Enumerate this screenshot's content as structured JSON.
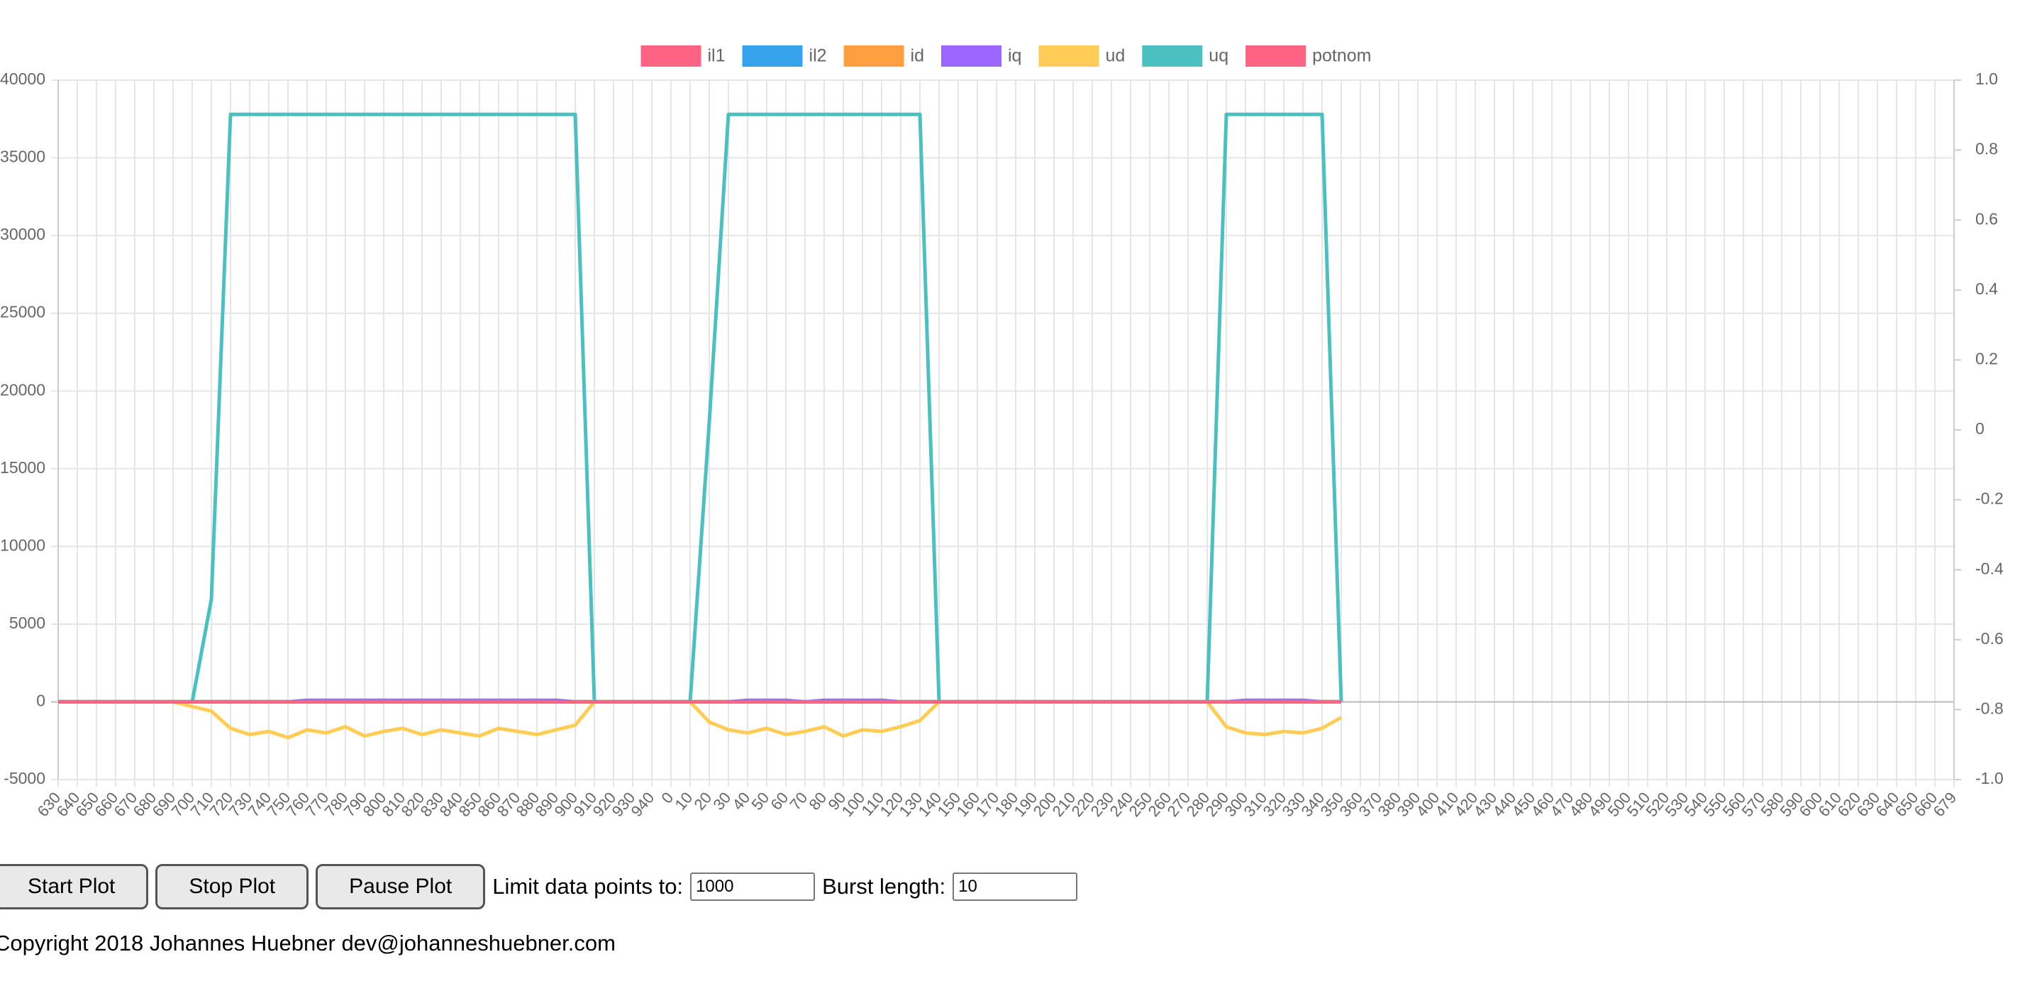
{
  "chart_data": {
    "type": "line",
    "categories": [
      "630",
      "640",
      "650",
      "660",
      "670",
      "680",
      "690",
      "700",
      "710",
      "720",
      "730",
      "740",
      "750",
      "760",
      "770",
      "780",
      "790",
      "800",
      "810",
      "820",
      "830",
      "840",
      "850",
      "860",
      "870",
      "880",
      "890",
      "900",
      "910",
      "920",
      "930",
      "940",
      "0",
      "10",
      "20",
      "30",
      "40",
      "50",
      "60",
      "70",
      "80",
      "90",
      "100",
      "110",
      "120",
      "130",
      "140",
      "150",
      "160",
      "170",
      "180",
      "190",
      "200",
      "210",
      "220",
      "230",
      "240",
      "250",
      "260",
      "270",
      "280",
      "290",
      "300",
      "310",
      "320",
      "330",
      "340",
      "350",
      "360",
      "370",
      "380",
      "390",
      "400",
      "410",
      "420",
      "430",
      "440",
      "450",
      "460",
      "470",
      "480",
      "490",
      "500",
      "510",
      "520",
      "530",
      "540",
      "550",
      "560",
      "570",
      "580",
      "590",
      "600",
      "610",
      "620",
      "630",
      "640",
      "650",
      "660",
      "679"
    ],
    "series": [
      {
        "name": "il1",
        "color": "#ff6384",
        "values": [
          0,
          0,
          0,
          0,
          0,
          0,
          0,
          0,
          0,
          0,
          0,
          0,
          0,
          0,
          0,
          0,
          0,
          0,
          0,
          0,
          0,
          0,
          0,
          0,
          0,
          0,
          0,
          0,
          0,
          0,
          0,
          0,
          0,
          0,
          0,
          0,
          0,
          0,
          0,
          0,
          0,
          0,
          0,
          0,
          0,
          0,
          0,
          0,
          0,
          0,
          0,
          0,
          0,
          0,
          0,
          0,
          0,
          0,
          0,
          0,
          0,
          0,
          0,
          0,
          0,
          0,
          0,
          0,
          null,
          null,
          null,
          null,
          null,
          null,
          null,
          null,
          null,
          null,
          null,
          null,
          null,
          null,
          null,
          null,
          null,
          null,
          null,
          null,
          null,
          null,
          null,
          null,
          null,
          null,
          null,
          null,
          null,
          null,
          null,
          null
        ]
      },
      {
        "name": "il2",
        "color": "#36a2eb",
        "values": [
          0,
          0,
          0,
          0,
          0,
          0,
          0,
          0,
          0,
          0,
          0,
          0,
          0,
          0,
          0,
          0,
          0,
          0,
          0,
          0,
          0,
          0,
          0,
          0,
          0,
          0,
          0,
          0,
          0,
          0,
          0,
          0,
          0,
          0,
          0,
          0,
          0,
          0,
          0,
          0,
          0,
          0,
          0,
          0,
          0,
          0,
          0,
          0,
          0,
          0,
          0,
          0,
          0,
          0,
          0,
          0,
          0,
          0,
          0,
          0,
          0,
          0,
          0,
          0,
          0,
          0,
          0,
          0,
          null,
          null,
          null,
          null,
          null,
          null,
          null,
          null,
          null,
          null,
          null,
          null,
          null,
          null,
          null,
          null,
          null,
          null,
          null,
          null,
          null,
          null,
          null,
          null,
          null,
          null,
          null,
          null,
          null,
          null,
          null,
          null
        ]
      },
      {
        "name": "id",
        "color": "#ff9f40",
        "values": [
          0,
          0,
          0,
          0,
          0,
          0,
          0,
          0,
          0,
          0,
          0,
          0,
          0,
          0,
          0,
          0,
          0,
          0,
          0,
          0,
          0,
          0,
          0,
          0,
          0,
          0,
          0,
          0,
          0,
          0,
          0,
          0,
          0,
          0,
          0,
          0,
          0,
          0,
          0,
          0,
          0,
          0,
          0,
          0,
          0,
          0,
          0,
          0,
          0,
          0,
          0,
          0,
          0,
          0,
          0,
          0,
          0,
          0,
          0,
          0,
          0,
          0,
          0,
          0,
          0,
          0,
          0,
          0,
          null,
          null,
          null,
          null,
          null,
          null,
          null,
          null,
          null,
          null,
          null,
          null,
          null,
          null,
          null,
          null,
          null,
          null,
          null,
          null,
          null,
          null,
          null,
          null,
          null,
          null,
          null,
          null,
          null,
          null,
          null,
          null
        ]
      },
      {
        "name": "iq",
        "color": "#9966ff",
        "values": [
          0,
          0,
          0,
          0,
          0,
          0,
          0,
          0,
          0,
          0,
          0,
          0,
          0,
          100,
          100,
          100,
          100,
          100,
          100,
          100,
          100,
          100,
          100,
          100,
          100,
          100,
          100,
          0,
          0,
          0,
          0,
          0,
          0,
          0,
          0,
          0,
          100,
          100,
          100,
          0,
          100,
          100,
          100,
          100,
          0,
          0,
          0,
          0,
          0,
          0,
          0,
          0,
          0,
          0,
          0,
          0,
          0,
          0,
          0,
          0,
          0,
          0,
          100,
          100,
          100,
          100,
          0,
          0,
          null,
          null,
          null,
          null,
          null,
          null,
          null,
          null,
          null,
          null,
          null,
          null,
          null,
          null,
          null,
          null,
          null,
          null,
          null,
          null,
          null,
          null,
          null,
          null,
          null,
          null,
          null,
          null,
          null,
          null,
          null,
          null
        ]
      },
      {
        "name": "ud",
        "color": "#ffcd56",
        "values": [
          0,
          0,
          0,
          0,
          0,
          0,
          0,
          -300,
          -600,
          -1700,
          -2100,
          -1900,
          -2300,
          -1800,
          -2000,
          -1600,
          -2200,
          -1900,
          -1700,
          -2100,
          -1800,
          -2000,
          -2200,
          -1700,
          -1900,
          -2100,
          -1800,
          -1500,
          0,
          0,
          0,
          0,
          0,
          0,
          -1300,
          -1800,
          -2000,
          -1700,
          -2100,
          -1900,
          -1600,
          -2200,
          -1800,
          -1900,
          -1600,
          -1200,
          0,
          0,
          0,
          0,
          0,
          0,
          0,
          0,
          0,
          0,
          0,
          0,
          0,
          0,
          0,
          -1600,
          -2000,
          -2100,
          -1900,
          -2000,
          -1700,
          -1000,
          null,
          null,
          null,
          null,
          null,
          null,
          null,
          null,
          null,
          null,
          null,
          null,
          null,
          null,
          null,
          null,
          null,
          null,
          null,
          null,
          null,
          null,
          null,
          null,
          null,
          null,
          null,
          null,
          null,
          null,
          null,
          null
        ]
      },
      {
        "name": "uq",
        "color": "#4bc0c0",
        "values": [
          0,
          0,
          0,
          0,
          0,
          0,
          0,
          0,
          6600,
          37800,
          37800,
          37800,
          37800,
          37800,
          37800,
          37800,
          37800,
          37800,
          37800,
          37800,
          37800,
          37800,
          37800,
          37800,
          37800,
          37800,
          37800,
          37800,
          0,
          0,
          0,
          0,
          0,
          0,
          18000,
          37800,
          37800,
          37800,
          37800,
          37800,
          37800,
          37800,
          37800,
          37800,
          37800,
          37800,
          0,
          0,
          0,
          0,
          0,
          0,
          0,
          0,
          0,
          0,
          0,
          0,
          0,
          0,
          0,
          37800,
          37800,
          37800,
          37800,
          37800,
          37800,
          0,
          null,
          null,
          null,
          null,
          null,
          null,
          null,
          null,
          null,
          null,
          null,
          null,
          null,
          null,
          null,
          null,
          null,
          null,
          null,
          null,
          null,
          null,
          null,
          null,
          null,
          null,
          null,
          null,
          null,
          null,
          null,
          null
        ]
      },
      {
        "name": "potnom",
        "color": "#ff6384",
        "values": [
          0,
          0,
          0,
          0,
          0,
          0,
          0,
          0,
          0,
          0,
          0,
          0,
          0,
          0,
          0,
          0,
          0,
          0,
          0,
          0,
          0,
          0,
          0,
          0,
          0,
          0,
          0,
          0,
          0,
          0,
          0,
          0,
          0,
          0,
          0,
          0,
          0,
          0,
          0,
          0,
          0,
          0,
          0,
          0,
          0,
          0,
          0,
          0,
          0,
          0,
          0,
          0,
          0,
          0,
          0,
          0,
          0,
          0,
          0,
          0,
          0,
          0,
          0,
          0,
          0,
          0,
          0,
          0,
          null,
          null,
          null,
          null,
          null,
          null,
          null,
          null,
          null,
          null,
          null,
          null,
          null,
          null,
          null,
          null,
          null,
          null,
          null,
          null,
          null,
          null,
          null,
          null,
          null,
          null,
          null,
          null,
          null,
          null,
          null,
          null
        ]
      }
    ],
    "ylim": [
      -5000,
      40000
    ],
    "yticks": [
      -5000,
      0,
      5000,
      10000,
      15000,
      20000,
      25000,
      30000,
      35000,
      40000
    ],
    "y2lim": [
      -1,
      1
    ],
    "y2ticks": [
      {
        "value": -1,
        "label": "-1.0"
      },
      -0.8,
      -0.6,
      -0.4,
      -0.2,
      0,
      0.2,
      0.4,
      0.6,
      0.8,
      {
        "value": 1,
        "label": "1.0"
      }
    ],
    "grid": true,
    "legend": "top"
  },
  "controls": {
    "buttons": [
      "Start Plot",
      "Stop Plot",
      "Pause Plot"
    ],
    "limit_label": "Limit data points to:",
    "limit_value": "1000",
    "burst_label": "Burst length:",
    "burst_value": "10"
  },
  "footer": {
    "copyright": "Copyright 2018 Johannes Huebner dev@johanneshuebner.com"
  }
}
